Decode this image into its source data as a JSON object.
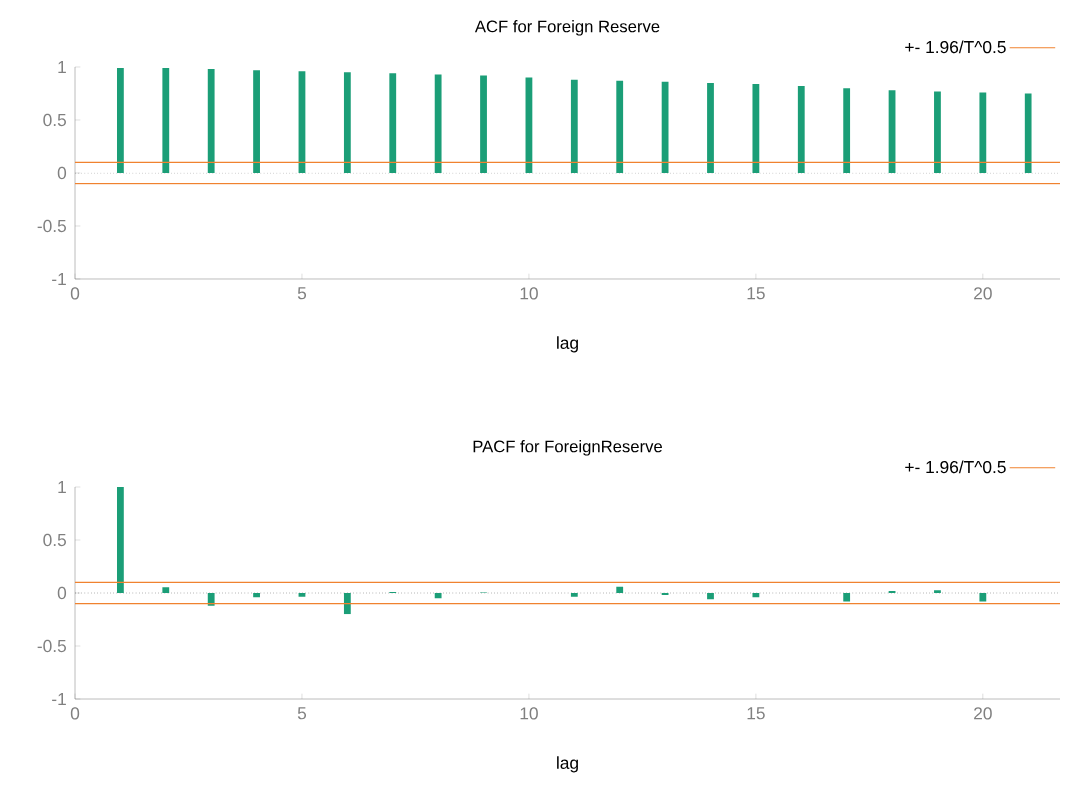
{
  "chart_data": [
    {
      "type": "bar",
      "title": "ACF for Foreign Reserve",
      "xlabel": "lag",
      "x": [
        1,
        2,
        3,
        4,
        5,
        6,
        7,
        8,
        9,
        10,
        11,
        12,
        13,
        14,
        15,
        16,
        17,
        18,
        19,
        20,
        21
      ],
      "values": [
        0.99,
        0.99,
        0.98,
        0.97,
        0.96,
        0.95,
        0.94,
        0.93,
        0.92,
        0.9,
        0.88,
        0.87,
        0.86,
        0.85,
        0.84,
        0.82,
        0.8,
        0.78,
        0.77,
        0.76,
        0.75
      ],
      "color": "#1b9e77",
      "xlim": [
        0,
        21.7
      ],
      "xticks": [
        0,
        5,
        10,
        15,
        20
      ],
      "ylim": [
        -1,
        1
      ],
      "yticks": [
        -1,
        -0.5,
        0,
        0.5,
        1
      ],
      "ref_lines": [
        {
          "axis": "y",
          "value": 0.1,
          "label": "+- 1.96/T^0.5",
          "color": "#f0822f"
        },
        {
          "axis": "y",
          "value": -0.1,
          "color": "#f0822f"
        }
      ],
      "legend": "top right"
    },
    {
      "type": "bar",
      "title": "PACF for ForeignReserve",
      "xlabel": "lag",
      "x": [
        1,
        2,
        3,
        4,
        5,
        6,
        7,
        8,
        9,
        10,
        11,
        12,
        13,
        14,
        15,
        16,
        17,
        18,
        19,
        20,
        21
      ],
      "values": [
        1.0,
        0.055,
        -0.12,
        -0.04,
        -0.035,
        -0.2,
        0.01,
        -0.05,
        0.005,
        0,
        -0.035,
        0.06,
        -0.02,
        -0.06,
        -0.04,
        0,
        -0.08,
        0.02,
        0.025,
        -0.08,
        0
      ],
      "color": "#1b9e77",
      "xlim": [
        0,
        21.7
      ],
      "xticks": [
        0,
        5,
        10,
        15,
        20
      ],
      "ylim": [
        -1,
        1
      ],
      "yticks": [
        -1,
        -0.5,
        0,
        0.5,
        1
      ],
      "ref_lines": [
        {
          "axis": "y",
          "value": 0.1,
          "label": "+- 1.96/T^0.5",
          "color": "#f0822f"
        },
        {
          "axis": "y",
          "value": -0.1,
          "color": "#f0822f"
        }
      ],
      "legend": "top right"
    }
  ]
}
